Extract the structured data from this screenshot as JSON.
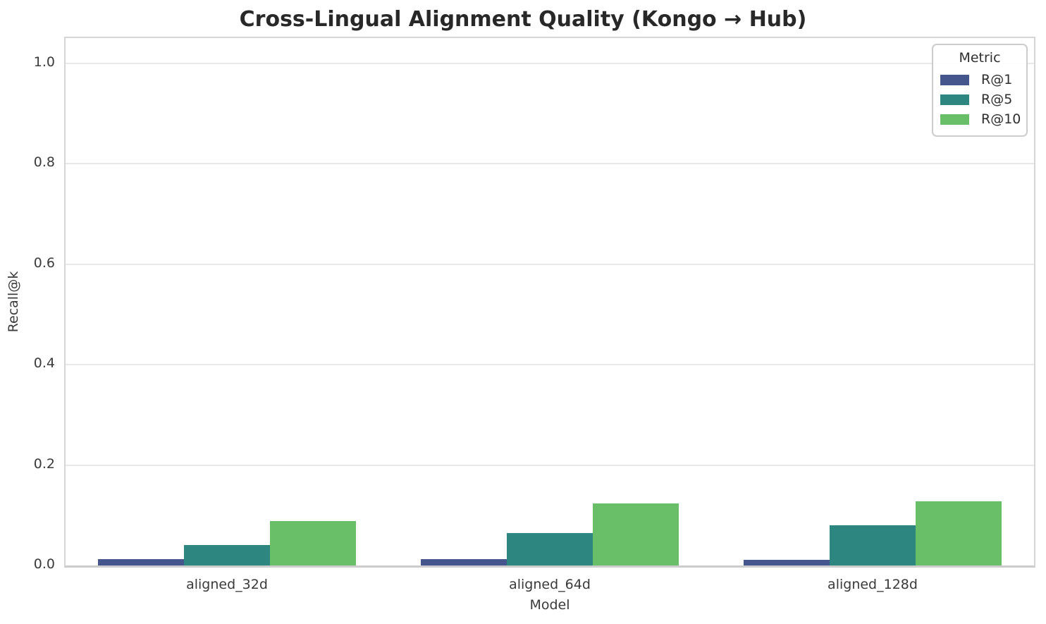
{
  "title": "Cross-Lingual Alignment Quality (Kongo → Hub)",
  "chart_data": {
    "type": "bar",
    "categories": [
      "aligned_32d",
      "aligned_64d",
      "aligned_128d"
    ],
    "series": [
      {
        "name": "R@1",
        "color": "#45568c",
        "values": [
          0.013,
          0.012,
          0.011
        ]
      },
      {
        "name": "R@5",
        "color": "#2e8681",
        "values": [
          0.041,
          0.064,
          0.08
        ]
      },
      {
        "name": "R@10",
        "color": "#69bf68",
        "values": [
          0.088,
          0.124,
          0.128
        ]
      }
    ],
    "title": "Cross-Lingual Alignment Quality (Kongo → Hub)",
    "xlabel": "Model",
    "ylabel": "Recall@k",
    "ylim": [
      0,
      1.05
    ],
    "yticks": [
      "0.0",
      "0.2",
      "0.4",
      "0.6",
      "0.8",
      "1.0"
    ],
    "grid": "horizontal",
    "legend_title": "Metric",
    "legend_position": "upper right"
  },
  "colors": {
    "background": "#ffffff",
    "spine": "#cccccc",
    "gridline": "#e8e8e8",
    "title_text": "#282828",
    "tick_text": "#3a3a3a"
  }
}
